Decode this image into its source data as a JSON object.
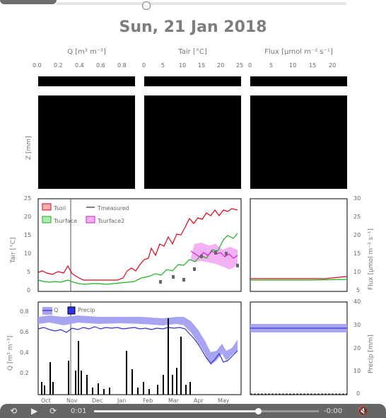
{
  "header": {
    "title": "Sun, 21 Jan 2018"
  },
  "columns": [
    {
      "title": "Q [m³ m⁻³]",
      "ticks": [
        "0.0",
        "0.2",
        "0.4",
        "0.6",
        "0.8"
      ]
    },
    {
      "title": "Tair [°C]",
      "ticks": [
        "0",
        "5",
        "10",
        "15",
        "20",
        "25"
      ]
    },
    {
      "title": "Flux [µmol m⁻² s⁻¹]",
      "ticks": [
        "0",
        "5",
        "10",
        "15",
        "20"
      ]
    }
  ],
  "row_label": "Z [mm]",
  "panel_a": {
    "ylabel": "Tair [°C]",
    "yticks": [
      "25",
      "20",
      "15",
      "10",
      "5",
      "0"
    ],
    "legend": [
      "Tsoil",
      "Tsurface",
      "Tsurface2",
      "Tmeasured"
    ]
  },
  "panel_a_right": {
    "ylabel": "Flux [µmol m⁻² s⁻¹]",
    "yticks": [
      "30",
      "25",
      "20",
      "15",
      "10",
      "5"
    ]
  },
  "panel_b": {
    "ylabel": "Q [m³ m⁻³]",
    "yticks": [
      "0.8",
      "0.6",
      "0.4",
      "0.2"
    ],
    "legend": [
      "Q",
      "Precip"
    ],
    "xticks": [
      "Oct",
      "Nov",
      "Dec",
      "Jan",
      "Feb",
      "Mar",
      "Apr",
      "May"
    ]
  },
  "panel_b_right": {
    "ylabel": "Precip [mm]",
    "yticks": [
      "40",
      "30",
      "20",
      "10",
      "0"
    ]
  },
  "player": {
    "time_current": "0:01",
    "time_remaining": "-0:00",
    "progress": 0.73
  },
  "colors": {
    "tsoil": "#e0001a",
    "tsurface": "#1ab31a",
    "tsurface2": "#e040e0",
    "q": "#3030d0",
    "q_band": "#a9a4f2",
    "precip": "#1a1aff"
  }
}
